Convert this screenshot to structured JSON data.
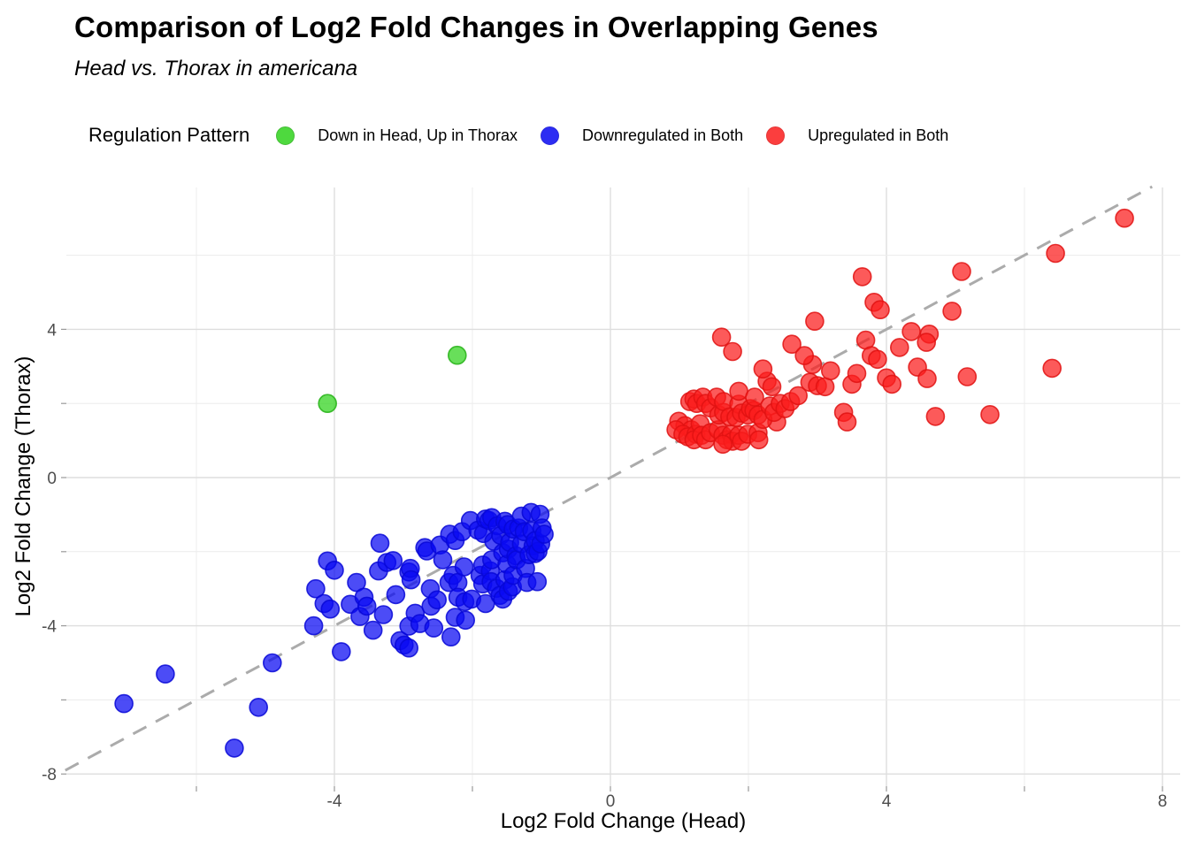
{
  "chart_data": {
    "type": "scatter",
    "title": "Comparison of Log2 Fold Changes in Overlapping Genes",
    "subtitle": "Head vs. Thorax in americana",
    "legend_title": "Regulation Pattern",
    "legend_position": "top",
    "xlabel": "Log2 Fold Change (Head)",
    "ylabel": "Log2 Fold Change (Thorax)",
    "xlim": [
      -7.9,
      8.25
    ],
    "ylim": [
      -8.35,
      7.85
    ],
    "grid": true,
    "grid_color_major": "#dedede",
    "grid_color_minor": "#ececec",
    "gridlines_x": [
      -6,
      -4,
      -2,
      0,
      2,
      4,
      6,
      8
    ],
    "gridlines_y": [
      -8,
      -6,
      -4,
      -2,
      0,
      2,
      4,
      6
    ],
    "x_tick_values": [
      -4,
      0,
      4,
      8
    ],
    "x_tick_display": [
      "-4",
      "0",
      "4",
      "8"
    ],
    "y_tick_values": [
      -8,
      -4,
      0,
      4
    ],
    "y_tick_display": [
      "-8",
      "-4",
      "0",
      "4"
    ],
    "axis_tick_values_x": [
      -6,
      -4,
      -2,
      0,
      2,
      4,
      6,
      8
    ],
    "axis_tick_values_y": [
      -8,
      -6,
      -4,
      -2,
      0,
      2,
      4
    ],
    "tick_label_color": "#4d4d4d",
    "reference_line": {
      "type": "identity y = x",
      "style": "dashed",
      "color": "#ababab"
    },
    "series": [
      {
        "name": "Down in Head, Up in Thorax",
        "color": "#30d31d",
        "stroke": "#25b115",
        "points": [
          [
            -4.1,
            2.0
          ],
          [
            -2.22,
            3.3
          ]
        ]
      },
      {
        "name": "Downregulated in Both",
        "color": "#0909f2",
        "stroke": "#0707d6",
        "points": [
          [
            -7.05,
            -6.1
          ],
          [
            -6.45,
            -5.3
          ],
          [
            -5.45,
            -7.3
          ],
          [
            -5.1,
            -6.2
          ],
          [
            -4.9,
            -5.0
          ],
          [
            -4.3,
            -4.0
          ],
          [
            -3.9,
            -4.7
          ],
          [
            -4.27,
            -3.0
          ],
          [
            -4.15,
            -3.4
          ],
          [
            -4.1,
            -2.25
          ],
          [
            -4.06,
            -3.55
          ],
          [
            -4.0,
            -2.5
          ],
          [
            -3.77,
            -3.42
          ],
          [
            -3.68,
            -2.83
          ],
          [
            -3.63,
            -3.75
          ],
          [
            -3.57,
            -3.23
          ],
          [
            -3.53,
            -3.47
          ],
          [
            -3.44,
            -4.12
          ],
          [
            -3.36,
            -2.52
          ],
          [
            -3.34,
            -1.77
          ],
          [
            -3.29,
            -3.7
          ],
          [
            -3.24,
            -2.29
          ],
          [
            -3.15,
            -2.24
          ],
          [
            -3.11,
            -3.16
          ],
          [
            -3.05,
            -4.4
          ],
          [
            -2.99,
            -4.52
          ],
          [
            -2.92,
            -2.55
          ],
          [
            -2.9,
            -2.45
          ],
          [
            -2.89,
            -2.76
          ],
          [
            -2.92,
            -4.01
          ],
          [
            -2.92,
            -4.6
          ],
          [
            -2.83,
            -3.66
          ],
          [
            -2.76,
            -3.94
          ],
          [
            -2.69,
            -1.89
          ],
          [
            -2.66,
            -1.98
          ],
          [
            -2.61,
            -3.0
          ],
          [
            -2.6,
            -3.47
          ],
          [
            -2.56,
            -4.06
          ],
          [
            -2.51,
            -3.3
          ],
          [
            -2.47,
            -1.82
          ],
          [
            -2.43,
            -2.22
          ],
          [
            -2.34,
            -2.83
          ],
          [
            -2.33,
            -1.53
          ],
          [
            -2.31,
            -4.3
          ],
          [
            -2.28,
            -2.64
          ],
          [
            -2.25,
            -1.7
          ],
          [
            -2.25,
            -3.77
          ],
          [
            -2.21,
            -2.83
          ],
          [
            -2.21,
            -3.23
          ],
          [
            -2.15,
            -1.46
          ],
          [
            -2.12,
            -2.41
          ],
          [
            -2.11,
            -3.35
          ],
          [
            -2.1,
            -3.85
          ],
          [
            -2.03,
            -1.16
          ],
          [
            -2.01,
            -3.28
          ],
          [
            -1.92,
            -1.42
          ],
          [
            -1.89,
            -2.64
          ],
          [
            -1.85,
            -2.36
          ],
          [
            -1.85,
            -2.87
          ],
          [
            -1.84,
            -1.51
          ],
          [
            -1.81,
            -1.12
          ],
          [
            -1.81,
            -3.4
          ],
          [
            -1.76,
            -1.16
          ],
          [
            -1.74,
            -2.52
          ],
          [
            -1.73,
            -2.81
          ],
          [
            -1.72,
            -1.08
          ],
          [
            -1.72,
            -2.22
          ],
          [
            -1.69,
            -1.72
          ],
          [
            -1.65,
            -2.99
          ],
          [
            -1.64,
            -1.3
          ],
          [
            -1.6,
            -3.18
          ],
          [
            -1.59,
            -1.56
          ],
          [
            -1.56,
            -2.03
          ],
          [
            -1.56,
            -3.28
          ],
          [
            -1.53,
            -1.18
          ],
          [
            -1.53,
            -2.76
          ],
          [
            -1.5,
            -2.34
          ],
          [
            -1.49,
            -1.27
          ],
          [
            -1.48,
            -1.93
          ],
          [
            -1.48,
            -3.07
          ],
          [
            -1.46,
            -1.75
          ],
          [
            -1.42,
            -2.95
          ],
          [
            -1.41,
            -1.39
          ],
          [
            -1.41,
            -2.64
          ],
          [
            -1.37,
            -2.11
          ],
          [
            -1.36,
            -2.22
          ],
          [
            -1.33,
            -1.36
          ],
          [
            -1.29,
            -1.04
          ],
          [
            -1.29,
            -1.79
          ],
          [
            -1.25,
            -1.46
          ],
          [
            -1.23,
            -2.45
          ],
          [
            -1.21,
            -2.83
          ],
          [
            -1.18,
            -2.08
          ],
          [
            -1.15,
            -0.94
          ],
          [
            -1.14,
            -1.44
          ],
          [
            -1.12,
            -1.84
          ],
          [
            -1.09,
            -1.7
          ],
          [
            -1.09,
            -2.05
          ],
          [
            -1.06,
            -2.81
          ],
          [
            -1.05,
            -1.99
          ],
          [
            -1.02,
            -0.99
          ],
          [
            -1.01,
            -1.79
          ],
          [
            -0.99,
            -1.36
          ],
          [
            -0.96,
            -1.53
          ]
        ]
      },
      {
        "name": "Upregulated in Both",
        "color": "#fb1d1d",
        "stroke": "#e01212",
        "points": [
          [
            0.99,
            1.52
          ],
          [
            1.08,
            1.4
          ],
          [
            1.17,
            1.29
          ],
          [
            0.95,
            1.29
          ],
          [
            1.05,
            1.17
          ],
          [
            1.12,
            1.1
          ],
          [
            1.24,
            1.17
          ],
          [
            1.21,
            1.02
          ],
          [
            1.3,
            1.45
          ],
          [
            1.32,
            1.14
          ],
          [
            1.38,
            1.02
          ],
          [
            1.45,
            1.21
          ],
          [
            1.56,
            1.29
          ],
          [
            1.63,
            1.14
          ],
          [
            1.69,
            1.02
          ],
          [
            1.75,
            1.17
          ],
          [
            1.77,
            0.98
          ],
          [
            1.86,
            1.14
          ],
          [
            1.9,
            0.98
          ],
          [
            1.99,
            1.17
          ],
          [
            1.63,
            0.9
          ],
          [
            2.14,
            1.21
          ],
          [
            2.15,
            1.02
          ],
          [
            2.41,
            1.5
          ],
          [
            1.15,
            2.05
          ],
          [
            1.21,
            2.12
          ],
          [
            1.25,
            2.0
          ],
          [
            1.34,
            2.17
          ],
          [
            1.38,
            2.0
          ],
          [
            1.45,
            1.88
          ],
          [
            1.54,
            2.17
          ],
          [
            1.57,
            1.69
          ],
          [
            1.64,
            1.76
          ],
          [
            1.64,
            2.05
          ],
          [
            1.73,
            1.64
          ],
          [
            1.82,
            1.62
          ],
          [
            1.86,
            1.98
          ],
          [
            1.86,
            2.33
          ],
          [
            1.9,
            1.74
          ],
          [
            1.99,
            1.69
          ],
          [
            2.03,
            1.86
          ],
          [
            2.08,
            1.81
          ],
          [
            2.09,
            2.17
          ],
          [
            2.14,
            1.69
          ],
          [
            2.21,
            1.57
          ],
          [
            2.27,
            2.6
          ],
          [
            2.21,
            2.93
          ],
          [
            2.31,
            1.93
          ],
          [
            2.34,
            2.45
          ],
          [
            2.37,
            1.76
          ],
          [
            2.46,
            2.0
          ],
          [
            2.53,
            1.86
          ],
          [
            2.61,
            2.05
          ],
          [
            2.72,
            2.21
          ],
          [
            2.89,
            2.57
          ],
          [
            2.93,
            3.05
          ],
          [
            3.0,
            2.48
          ],
          [
            3.11,
            2.45
          ],
          [
            3.19,
            2.88
          ],
          [
            3.38,
            1.76
          ],
          [
            3.43,
            1.5
          ],
          [
            3.5,
            2.52
          ],
          [
            3.57,
            2.81
          ],
          [
            1.61,
            3.79
          ],
          [
            1.77,
            3.4
          ],
          [
            2.63,
            3.6
          ],
          [
            2.81,
            3.29
          ],
          [
            2.96,
            4.22
          ],
          [
            3.65,
            5.42
          ],
          [
            3.82,
            4.73
          ],
          [
            3.91,
            4.53
          ],
          [
            3.7,
            3.71
          ],
          [
            3.78,
            3.29
          ],
          [
            3.87,
            3.19
          ],
          [
            4.0,
            2.69
          ],
          [
            4.08,
            2.52
          ],
          [
            4.19,
            3.51
          ],
          [
            4.36,
            3.94
          ],
          [
            4.62,
            3.87
          ],
          [
            4.58,
            3.65
          ],
          [
            4.45,
            2.98
          ],
          [
            4.59,
            2.67
          ],
          [
            4.95,
            4.49
          ],
          [
            5.09,
            5.56
          ],
          [
            5.17,
            2.72
          ],
          [
            6.4,
            2.95
          ],
          [
            6.45,
            6.05
          ],
          [
            7.45,
            7.0
          ],
          [
            4.71,
            1.65
          ],
          [
            5.5,
            1.7
          ]
        ]
      }
    ]
  }
}
